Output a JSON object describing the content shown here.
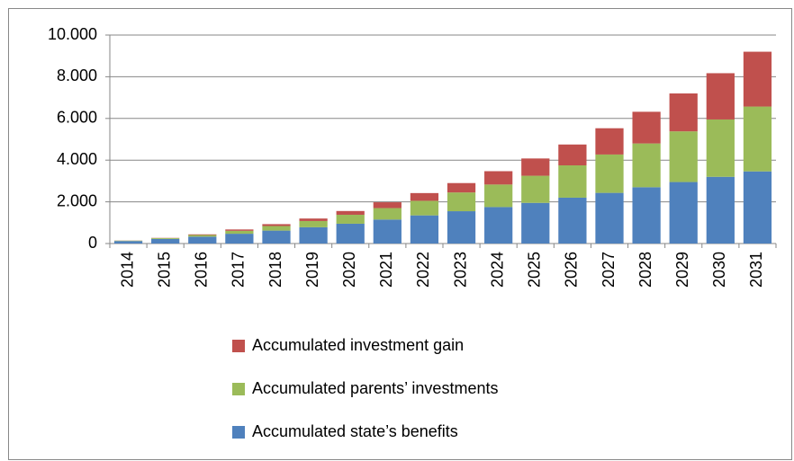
{
  "chart_data": {
    "type": "stacked_bar",
    "categories": [
      "2014",
      "2015",
      "2016",
      "2017",
      "2018",
      "2019",
      "2020",
      "2021",
      "2022",
      "2023",
      "2024",
      "2025",
      "2026",
      "2027",
      "2028",
      "2029",
      "2030",
      "2031"
    ],
    "series": [
      {
        "name": "Accumulated state’s benefits",
        "color": "#4f81bd",
        "values": [
          120,
          220,
          330,
          470,
          620,
          780,
          950,
          1150,
          1350,
          1550,
          1750,
          1950,
          2200,
          2430,
          2700,
          2950,
          3200,
          3460
        ]
      },
      {
        "name": "Accumulated parents’ investments",
        "color": "#9bbb59",
        "values": [
          20,
          40,
          80,
          140,
          220,
          300,
          430,
          550,
          700,
          900,
          1080,
          1300,
          1550,
          1840,
          2100,
          2430,
          2750,
          3110
        ]
      },
      {
        "name": "Accumulated investment gain",
        "color": "#c0504d",
        "values": [
          5,
          10,
          30,
          65,
          90,
          120,
          180,
          280,
          370,
          450,
          640,
          830,
          1000,
          1260,
          1520,
          1820,
          2220,
          2630
        ]
      }
    ],
    "ylim": [
      0,
      10000
    ],
    "yticks": [
      0,
      {
        "value": 2000,
        "label": "2.000"
      },
      {
        "value": 4000,
        "label": "4.000"
      },
      {
        "value": 6000,
        "label": "6.000"
      },
      {
        "value": 8000,
        "label": "8.000"
      },
      {
        "value": 10000,
        "label": "10.000"
      }
    ],
    "grid": true
  }
}
